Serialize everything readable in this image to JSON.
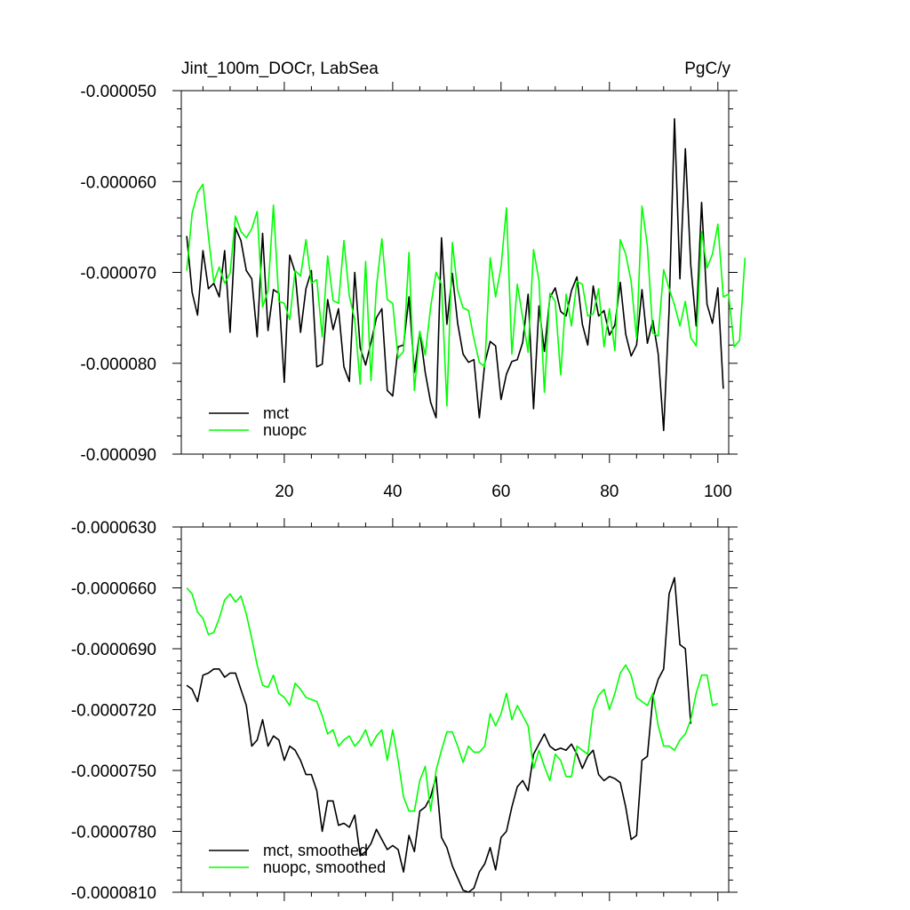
{
  "chart_data": [
    {
      "type": "line",
      "title": "Jint_100m_DOCr, LabSea",
      "units": "PgC/y",
      "xlim": [
        1,
        102
      ],
      "ylim": [
        -9e-05,
        -5e-05
      ],
      "x_ticks": [
        20,
        40,
        60,
        80,
        100
      ],
      "y_ticks": [
        -5e-05,
        -6e-05,
        -7e-05,
        -8e-05,
        -9e-05
      ],
      "y_tick_labels": [
        "-0.000050",
        "-0.000060",
        "-0.000070",
        "-0.000080",
        "-0.000090"
      ],
      "legend_position": "bottom-left",
      "series": [
        {
          "name": "mct",
          "color": "#000000",
          "values": [
            -6.6e-05,
            -7.22e-05,
            -7.47e-05,
            -6.76e-05,
            -7.18e-05,
            -7.12e-05,
            -7.27e-05,
            -6.76e-05,
            -7.66e-05,
            -6.51e-05,
            -6.65e-05,
            -6.98e-05,
            -7.07e-05,
            -7.71e-05,
            -6.57e-05,
            -7.64e-05,
            -7.19e-05,
            -7.23e-05,
            -8.21e-05,
            -6.81e-05,
            -7e-05,
            -7.66e-05,
            -7.18e-05,
            -6.98e-05,
            -8.04e-05,
            -8.01e-05,
            -7.3e-05,
            -7.63e-05,
            -7.4e-05,
            -8.04e-05,
            -8.2e-05,
            -7e-05,
            -7.83e-05,
            -8.02e-05,
            -7.77e-05,
            -7.5e-05,
            -7.4e-05,
            -8.3e-05,
            -8.36e-05,
            -7.82e-05,
            -7.8e-05,
            -7.27e-05,
            -8.1e-05,
            -7.65e-05,
            -8.1e-05,
            -8.43e-05,
            -8.6e-05,
            -6.62e-05,
            -7.57e-05,
            -7.01e-05,
            -7.56e-05,
            -7.9e-05,
            -7.99e-05,
            -7.96e-05,
            -8.6e-05,
            -8e-05,
            -7.76e-05,
            -7.81e-05,
            -8.4e-05,
            -8.12e-05,
            -7.98e-05,
            -7.96e-05,
            -7.77e-05,
            -7.24e-05,
            -8.5e-05,
            -7.37e-05,
            -7.87e-05,
            -7.28e-05,
            -7.17e-05,
            -7.43e-05,
            -7.48e-05,
            -7.2e-05,
            -7.05e-05,
            -7.57e-05,
            -7.8e-05,
            -7.15e-05,
            -7.48e-05,
            -7.42e-05,
            -7.69e-05,
            -7.58e-05,
            -7.11e-05,
            -7.68e-05,
            -7.92e-05,
            -7.8e-05,
            -7.19e-05,
            -7.78e-05,
            -7.53e-05,
            -7.9e-05,
            -8.74e-05,
            -7.42e-05,
            -5.31e-05,
            -7.07e-05,
            -5.64e-05,
            -6.92e-05,
            -7.59e-05,
            -6.23e-05,
            -7.35e-05,
            -7.56e-05,
            -7.17e-05,
            -8.28e-05
          ]
        },
        {
          "name": "nuopc",
          "color": "#00ff00",
          "values": [
            -6.98e-05,
            -6.35e-05,
            -6.12e-05,
            -6.03e-05,
            -6.6e-05,
            -7.11e-05,
            -6.94e-05,
            -7.12e-05,
            -7.01e-05,
            -6.38e-05,
            -6.55e-05,
            -6.62e-05,
            -6.52e-05,
            -6.33e-05,
            -7.38e-05,
            -7.2e-05,
            -6.26e-05,
            -7.32e-05,
            -7.34e-05,
            -7.52e-05,
            -6.98e-05,
            -7.04e-05,
            -6.64e-05,
            -7.12e-05,
            -7.08e-05,
            -7.71e-05,
            -6.82e-05,
            -7.31e-05,
            -7.34e-05,
            -6.65e-05,
            -7.26e-05,
            -7.52e-05,
            -8.23e-05,
            -6.88e-05,
            -8.19e-05,
            -7.16e-05,
            -6.63e-05,
            -7.3e-05,
            -7.34e-05,
            -7.94e-05,
            -7.87e-05,
            -6.78e-05,
            -8.3e-05,
            -7.65e-05,
            -7.91e-05,
            -7.38e-05,
            -7e-05,
            -7.13e-05,
            -8.47e-05,
            -6.67e-05,
            -7.2e-05,
            -7.39e-05,
            -7.42e-05,
            -7.73e-05,
            -7.99e-05,
            -8.04e-05,
            -6.84e-05,
            -7.27e-05,
            -6.94e-05,
            -6.29e-05,
            -7.9e-05,
            -7.13e-05,
            -7.5e-05,
            -7.88e-05,
            -6.75e-05,
            -7.09e-05,
            -8.32e-05,
            -7.23e-05,
            -7.32e-05,
            -8.13e-05,
            -7.24e-05,
            -7.59e-05,
            -7.1e-05,
            -7.13e-05,
            -7.48e-05,
            -7.46e-05,
            -7.18e-05,
            -7.82e-05,
            -7.4e-05,
            -7.86e-05,
            -6.64e-05,
            -6.8e-05,
            -7.1e-05,
            -7.73e-05,
            -6.27e-05,
            -6.71e-05,
            -7.67e-05,
            -7.7e-05,
            -6.97e-05,
            -7.18e-05,
            -7.36e-05,
            -7.59e-05,
            -7.32e-05,
            -7.72e-05,
            -7.81e-05,
            -6.55e-05,
            -6.95e-05,
            -6.8e-05,
            -6.47e-05,
            -7.27e-05,
            -7.24e-05,
            -7.82e-05,
            -7.75e-05,
            -6.84e-05
          ]
        }
      ]
    },
    {
      "type": "line",
      "title": "",
      "xlim": [
        1,
        102
      ],
      "ylim": [
        -8.1e-05,
        -6.3e-05
      ],
      "x_ticks": [
        20,
        40,
        60,
        80,
        100
      ],
      "y_ticks": [
        -6.3e-05,
        -6.6e-05,
        -6.9e-05,
        -7.2e-05,
        -7.5e-05,
        -7.8e-05,
        -8.1e-05
      ],
      "y_tick_labels": [
        "-0.0000630",
        "-0.0000660",
        "-0.0000690",
        "-0.0000720",
        "-0.0000750",
        "-0.0000780",
        "-0.0000810"
      ],
      "legend_position": "bottom-left",
      "series": [
        {
          "name": "mct, smoothed",
          "color": "#000000",
          "values": [
            -7.08e-05,
            -7.1e-05,
            -7.16e-05,
            -7.03e-05,
            -7.02e-05,
            -7e-05,
            -7e-05,
            -7.04e-05,
            -7.02e-05,
            -7.02e-05,
            -7.1e-05,
            -7.18e-05,
            -7.38e-05,
            -7.35e-05,
            -7.25e-05,
            -7.38e-05,
            -7.33e-05,
            -7.35e-05,
            -7.45e-05,
            -7.38e-05,
            -7.4e-05,
            -7.45e-05,
            -7.52e-05,
            -7.52e-05,
            -7.6e-05,
            -7.8e-05,
            -7.65e-05,
            -7.65e-05,
            -7.77e-05,
            -7.76e-05,
            -7.78e-05,
            -7.72e-05,
            -7.92e-05,
            -7.9e-05,
            -7.86e-05,
            -7.79e-05,
            -7.84e-05,
            -7.89e-05,
            -7.87e-05,
            -7.89e-05,
            -8e-05,
            -7.82e-05,
            -7.9e-05,
            -7.7e-05,
            -7.68e-05,
            -7.63e-05,
            -7.53e-05,
            -7.83e-05,
            -7.88e-05,
            -7.97e-05,
            -8.03e-05,
            -8.09e-05,
            -8.1e-05,
            -8.08e-05,
            -8e-05,
            -7.96e-05,
            -7.88e-05,
            -7.99e-05,
            -7.83e-05,
            -7.8e-05,
            -7.68e-05,
            -7.58e-05,
            -7.55e-05,
            -7.6e-05,
            -7.42e-05,
            -7.37e-05,
            -7.32e-05,
            -7.38e-05,
            -7.4e-05,
            -7.39e-05,
            -7.4e-05,
            -7.37e-05,
            -7.42e-05,
            -7.49e-05,
            -7.43e-05,
            -7.4e-05,
            -7.52e-05,
            -7.55e-05,
            -7.53e-05,
            -7.54e-05,
            -7.56e-05,
            -7.68e-05,
            -7.84e-05,
            -7.82e-05,
            -7.45e-05,
            -7.43e-05,
            -7.14e-05,
            -7.05e-05,
            -7e-05,
            -6.63e-05,
            -6.55e-05,
            -6.88e-05,
            -6.9e-05,
            -7.27e-05
          ]
        },
        {
          "name": "nuopc, smoothed",
          "color": "#00ff00",
          "values": [
            -6.6e-05,
            -6.63e-05,
            -6.72e-05,
            -6.75e-05,
            -6.83e-05,
            -6.82e-05,
            -6.75e-05,
            -6.66e-05,
            -6.63e-05,
            -6.67e-05,
            -6.64e-05,
            -6.73e-05,
            -6.85e-05,
            -6.98e-05,
            -7.08e-05,
            -7.09e-05,
            -7.03e-05,
            -7.12e-05,
            -7.14e-05,
            -7.18e-05,
            -7.07e-05,
            -7.1e-05,
            -7.14e-05,
            -7.15e-05,
            -7.16e-05,
            -7.23e-05,
            -7.32e-05,
            -7.3e-05,
            -7.38e-05,
            -7.35e-05,
            -7.33e-05,
            -7.38e-05,
            -7.35e-05,
            -7.3e-05,
            -7.38e-05,
            -7.33e-05,
            -7.3e-05,
            -7.45e-05,
            -7.3e-05,
            -7.45e-05,
            -7.63e-05,
            -7.7e-05,
            -7.7e-05,
            -7.55e-05,
            -7.48e-05,
            -7.7e-05,
            -7.5e-05,
            -7.4e-05,
            -7.31e-05,
            -7.31e-05,
            -7.38e-05,
            -7.46e-05,
            -7.38e-05,
            -7.41e-05,
            -7.41e-05,
            -7.38e-05,
            -7.22e-05,
            -7.28e-05,
            -7.22e-05,
            -7.12e-05,
            -7.25e-05,
            -7.18e-05,
            -7.23e-05,
            -7.28e-05,
            -7.49e-05,
            -7.4e-05,
            -7.48e-05,
            -7.55e-05,
            -7.42e-05,
            -7.45e-05,
            -7.53e-05,
            -7.53e-05,
            -7.38e-05,
            -7.4e-05,
            -7.42e-05,
            -7.2e-05,
            -7.13e-05,
            -7.1e-05,
            -7.2e-05,
            -7.12e-05,
            -7.02e-05,
            -6.98e-05,
            -7.03e-05,
            -7.14e-05,
            -7.16e-05,
            -7.18e-05,
            -7.12e-05,
            -7.28e-05,
            -7.38e-05,
            -7.38e-05,
            -7.4e-05,
            -7.35e-05,
            -7.32e-05,
            -7.25e-05,
            -7.12e-05,
            -7.03e-05,
            -7.03e-05,
            -7.18e-05,
            -7.17e-05
          ]
        }
      ]
    }
  ]
}
